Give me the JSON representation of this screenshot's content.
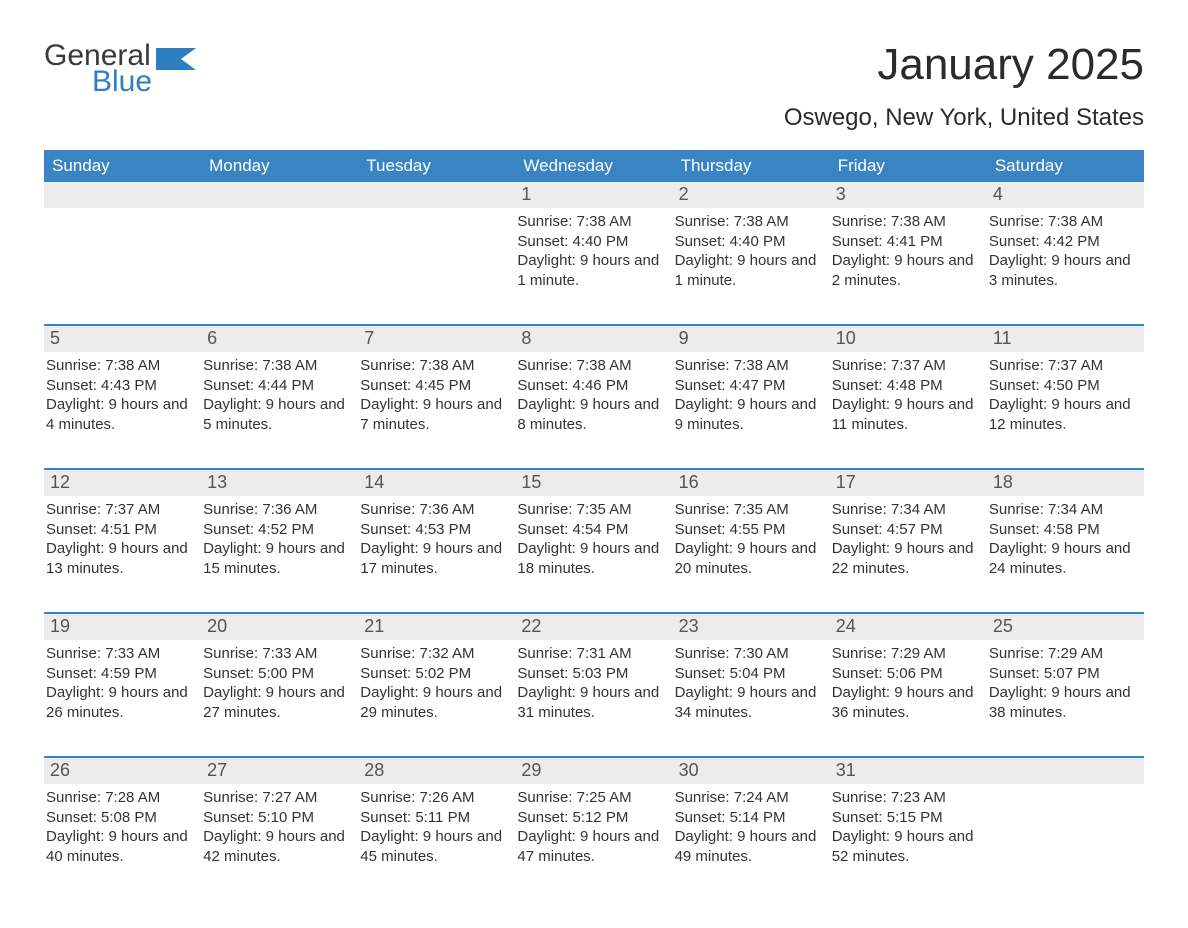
{
  "logo": {
    "word1": "General",
    "word2": "Blue"
  },
  "colors": {
    "header_bg": "#3b84c4",
    "header_text": "#ffffff",
    "daynum_bg": "#ececec",
    "daynum_text": "#555555",
    "body_text": "#333333",
    "accent_blue": "#2f7ec0",
    "week_divider": "#3b84c4"
  },
  "title": {
    "month": "January 2025",
    "location": "Oswego, New York, United States"
  },
  "days_of_week": [
    "Sunday",
    "Monday",
    "Tuesday",
    "Wednesday",
    "Thursday",
    "Friday",
    "Saturday"
  ],
  "weeks": [
    [
      {
        "n": "",
        "sunrise": "",
        "sunset": "",
        "daylight": ""
      },
      {
        "n": "",
        "sunrise": "",
        "sunset": "",
        "daylight": ""
      },
      {
        "n": "",
        "sunrise": "",
        "sunset": "",
        "daylight": ""
      },
      {
        "n": "1",
        "sunrise": "Sunrise: 7:38 AM",
        "sunset": "Sunset: 4:40 PM",
        "daylight": "Daylight: 9 hours and 1 minute."
      },
      {
        "n": "2",
        "sunrise": "Sunrise: 7:38 AM",
        "sunset": "Sunset: 4:40 PM",
        "daylight": "Daylight: 9 hours and 1 minute."
      },
      {
        "n": "3",
        "sunrise": "Sunrise: 7:38 AM",
        "sunset": "Sunset: 4:41 PM",
        "daylight": "Daylight: 9 hours and 2 minutes."
      },
      {
        "n": "4",
        "sunrise": "Sunrise: 7:38 AM",
        "sunset": "Sunset: 4:42 PM",
        "daylight": "Daylight: 9 hours and 3 minutes."
      }
    ],
    [
      {
        "n": "5",
        "sunrise": "Sunrise: 7:38 AM",
        "sunset": "Sunset: 4:43 PM",
        "daylight": "Daylight: 9 hours and 4 minutes."
      },
      {
        "n": "6",
        "sunrise": "Sunrise: 7:38 AM",
        "sunset": "Sunset: 4:44 PM",
        "daylight": "Daylight: 9 hours and 5 minutes."
      },
      {
        "n": "7",
        "sunrise": "Sunrise: 7:38 AM",
        "sunset": "Sunset: 4:45 PM",
        "daylight": "Daylight: 9 hours and 7 minutes."
      },
      {
        "n": "8",
        "sunrise": "Sunrise: 7:38 AM",
        "sunset": "Sunset: 4:46 PM",
        "daylight": "Daylight: 9 hours and 8 minutes."
      },
      {
        "n": "9",
        "sunrise": "Sunrise: 7:38 AM",
        "sunset": "Sunset: 4:47 PM",
        "daylight": "Daylight: 9 hours and 9 minutes."
      },
      {
        "n": "10",
        "sunrise": "Sunrise: 7:37 AM",
        "sunset": "Sunset: 4:48 PM",
        "daylight": "Daylight: 9 hours and 11 minutes."
      },
      {
        "n": "11",
        "sunrise": "Sunrise: 7:37 AM",
        "sunset": "Sunset: 4:50 PM",
        "daylight": "Daylight: 9 hours and 12 minutes."
      }
    ],
    [
      {
        "n": "12",
        "sunrise": "Sunrise: 7:37 AM",
        "sunset": "Sunset: 4:51 PM",
        "daylight": "Daylight: 9 hours and 13 minutes."
      },
      {
        "n": "13",
        "sunrise": "Sunrise: 7:36 AM",
        "sunset": "Sunset: 4:52 PM",
        "daylight": "Daylight: 9 hours and 15 minutes."
      },
      {
        "n": "14",
        "sunrise": "Sunrise: 7:36 AM",
        "sunset": "Sunset: 4:53 PM",
        "daylight": "Daylight: 9 hours and 17 minutes."
      },
      {
        "n": "15",
        "sunrise": "Sunrise: 7:35 AM",
        "sunset": "Sunset: 4:54 PM",
        "daylight": "Daylight: 9 hours and 18 minutes."
      },
      {
        "n": "16",
        "sunrise": "Sunrise: 7:35 AM",
        "sunset": "Sunset: 4:55 PM",
        "daylight": "Daylight: 9 hours and 20 minutes."
      },
      {
        "n": "17",
        "sunrise": "Sunrise: 7:34 AM",
        "sunset": "Sunset: 4:57 PM",
        "daylight": "Daylight: 9 hours and 22 minutes."
      },
      {
        "n": "18",
        "sunrise": "Sunrise: 7:34 AM",
        "sunset": "Sunset: 4:58 PM",
        "daylight": "Daylight: 9 hours and 24 minutes."
      }
    ],
    [
      {
        "n": "19",
        "sunrise": "Sunrise: 7:33 AM",
        "sunset": "Sunset: 4:59 PM",
        "daylight": "Daylight: 9 hours and 26 minutes."
      },
      {
        "n": "20",
        "sunrise": "Sunrise: 7:33 AM",
        "sunset": "Sunset: 5:00 PM",
        "daylight": "Daylight: 9 hours and 27 minutes."
      },
      {
        "n": "21",
        "sunrise": "Sunrise: 7:32 AM",
        "sunset": "Sunset: 5:02 PM",
        "daylight": "Daylight: 9 hours and 29 minutes."
      },
      {
        "n": "22",
        "sunrise": "Sunrise: 7:31 AM",
        "sunset": "Sunset: 5:03 PM",
        "daylight": "Daylight: 9 hours and 31 minutes."
      },
      {
        "n": "23",
        "sunrise": "Sunrise: 7:30 AM",
        "sunset": "Sunset: 5:04 PM",
        "daylight": "Daylight: 9 hours and 34 minutes."
      },
      {
        "n": "24",
        "sunrise": "Sunrise: 7:29 AM",
        "sunset": "Sunset: 5:06 PM",
        "daylight": "Daylight: 9 hours and 36 minutes."
      },
      {
        "n": "25",
        "sunrise": "Sunrise: 7:29 AM",
        "sunset": "Sunset: 5:07 PM",
        "daylight": "Daylight: 9 hours and 38 minutes."
      }
    ],
    [
      {
        "n": "26",
        "sunrise": "Sunrise: 7:28 AM",
        "sunset": "Sunset: 5:08 PM",
        "daylight": "Daylight: 9 hours and 40 minutes."
      },
      {
        "n": "27",
        "sunrise": "Sunrise: 7:27 AM",
        "sunset": "Sunset: 5:10 PM",
        "daylight": "Daylight: 9 hours and 42 minutes."
      },
      {
        "n": "28",
        "sunrise": "Sunrise: 7:26 AM",
        "sunset": "Sunset: 5:11 PM",
        "daylight": "Daylight: 9 hours and 45 minutes."
      },
      {
        "n": "29",
        "sunrise": "Sunrise: 7:25 AM",
        "sunset": "Sunset: 5:12 PM",
        "daylight": "Daylight: 9 hours and 47 minutes."
      },
      {
        "n": "30",
        "sunrise": "Sunrise: 7:24 AM",
        "sunset": "Sunset: 5:14 PM",
        "daylight": "Daylight: 9 hours and 49 minutes."
      },
      {
        "n": "31",
        "sunrise": "Sunrise: 7:23 AM",
        "sunset": "Sunset: 5:15 PM",
        "daylight": "Daylight: 9 hours and 52 minutes."
      },
      {
        "n": "",
        "sunrise": "",
        "sunset": "",
        "daylight": ""
      }
    ]
  ]
}
